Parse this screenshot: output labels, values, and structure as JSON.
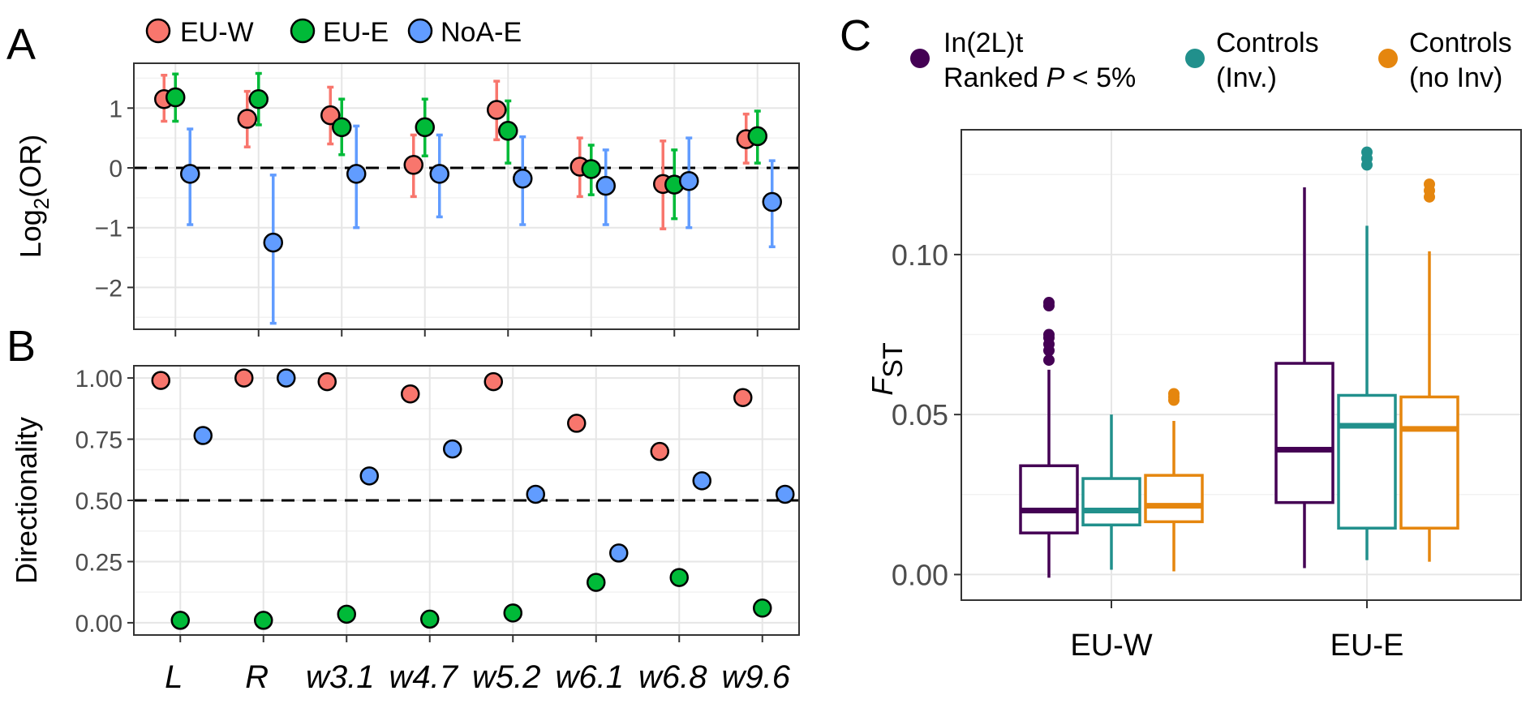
{
  "panel_labels": {
    "a": "A",
    "b": "B",
    "c": "C"
  },
  "colors": {
    "eu_w": "#F8766D",
    "eu_e": "#00BA38",
    "noa_e": "#619CFF",
    "inversion": "#440154",
    "controls_inv": "#21908C",
    "controls_noinv": "#E5860E"
  },
  "chart_data": [
    {
      "id": "A",
      "type": "scatter",
      "ylabel_main": "Log",
      "ylabel_sub": "2",
      "ylabel_tail": "(OR)",
      "ylim": [
        -2.7,
        1.75
      ],
      "y_ticks": [
        1,
        0,
        -1,
        -2
      ],
      "y_tick_labels": [
        "1",
        "0",
        "−1",
        "−2"
      ],
      "reference_line": 0,
      "categories": [
        "L",
        "R",
        "w3.1",
        "w4.7",
        "w5.2",
        "w6.1",
        "w6.8",
        "w9.6"
      ],
      "legend": [
        "EU-W",
        "EU-E",
        "NoA-E"
      ],
      "series": [
        {
          "name": "EU-W",
          "values": [
            1.15,
            0.82,
            0.88,
            0.05,
            0.97,
            0.02,
            -0.27,
            0.48
          ],
          "lower": [
            0.78,
            0.35,
            0.4,
            -0.48,
            0.47,
            -0.48,
            -1.02,
            0.08
          ],
          "upper": [
            1.55,
            1.28,
            1.35,
            0.55,
            1.45,
            0.5,
            0.45,
            0.9
          ]
        },
        {
          "name": "EU-E",
          "values": [
            1.18,
            1.15,
            0.68,
            0.68,
            0.62,
            -0.02,
            -0.28,
            0.53
          ],
          "lower": [
            0.78,
            0.72,
            0.22,
            0.2,
            0.08,
            -0.45,
            -0.85,
            0.08
          ],
          "upper": [
            1.57,
            1.58,
            1.15,
            1.15,
            1.12,
            0.38,
            0.3,
            0.95
          ]
        },
        {
          "name": "NoA-E",
          "values": [
            -0.1,
            -1.25,
            -0.1,
            -0.1,
            -0.18,
            -0.3,
            -0.22,
            -0.57
          ],
          "lower": [
            -0.95,
            -2.6,
            -1.0,
            -0.82,
            -0.95,
            -0.95,
            -1.0,
            -1.32
          ],
          "upper": [
            0.65,
            -0.12,
            0.7,
            0.55,
            0.52,
            0.3,
            0.5,
            0.12
          ]
        }
      ]
    },
    {
      "id": "B",
      "type": "scatter",
      "ylabel": "Directionality",
      "ylim": [
        -0.05,
        1.05
      ],
      "y_ticks": [
        0,
        0.25,
        0.5,
        0.75,
        1
      ],
      "y_tick_labels": [
        "0.00",
        "0.25",
        "0.50",
        "0.75",
        "1.00"
      ],
      "reference_line": 0.5,
      "categories": [
        "L",
        "R",
        "w3.1",
        "w4.7",
        "w5.2",
        "w6.1",
        "w6.8",
        "w9.6"
      ],
      "series": [
        {
          "name": "EU-W",
          "values": [
            0.99,
            1.0,
            0.985,
            0.935,
            0.985,
            0.815,
            0.7,
            0.92
          ]
        },
        {
          "name": "EU-E",
          "values": [
            0.01,
            0.01,
            0.035,
            0.015,
            0.04,
            0.165,
            0.185,
            0.06
          ]
        },
        {
          "name": "NoA-E",
          "values": [
            0.765,
            1.0,
            0.6,
            0.71,
            0.525,
            0.285,
            0.58,
            0.525
          ]
        }
      ]
    },
    {
      "id": "C",
      "type": "box",
      "ylabel_main": "F",
      "ylabel_sub": "ST",
      "ylim": [
        -0.008,
        0.139
      ],
      "y_ticks": [
        0,
        0.05,
        0.1
      ],
      "y_tick_labels": [
        "0.00",
        "0.05",
        "0.10"
      ],
      "categories": [
        "EU-W",
        "EU-E"
      ],
      "legend": [
        {
          "line1": "In(2L)t",
          "line2_pre": "Ranked ",
          "line2_p": "P",
          "line2_post": " < 5%"
        },
        {
          "line1": "Controls",
          "line2": "(Inv.)"
        },
        {
          "line1": "Controls",
          "line2": "(no Inv)"
        }
      ],
      "series": [
        {
          "name": "In(2L)t",
          "boxes": [
            {
              "whisker_low": -0.001,
              "q1": 0.013,
              "median": 0.02,
              "q3": 0.034,
              "whisker_high": 0.064,
              "outliers": [
                0.067,
                0.07,
                0.072,
                0.074,
                0.075,
                0.084,
                0.085
              ]
            },
            {
              "whisker_low": 0.002,
              "q1": 0.0225,
              "median": 0.039,
              "q3": 0.066,
              "whisker_high": 0.121,
              "outliers": []
            }
          ]
        },
        {
          "name": "Controls (Inv.)",
          "boxes": [
            {
              "whisker_low": 0.0015,
              "q1": 0.0155,
              "median": 0.02,
              "q3": 0.03,
              "whisker_high": 0.05,
              "outliers": []
            },
            {
              "whisker_low": 0.0045,
              "q1": 0.0145,
              "median": 0.0465,
              "q3": 0.056,
              "whisker_high": 0.109,
              "outliers": [
                0.128,
                0.13,
                0.132
              ]
            }
          ]
        },
        {
          "name": "Controls (no Inv)",
          "boxes": [
            {
              "whisker_low": 0.001,
              "q1": 0.0165,
              "median": 0.0215,
              "q3": 0.031,
              "whisker_high": 0.048,
              "outliers": [
                0.0545,
                0.0555,
                0.0565
              ]
            },
            {
              "whisker_low": 0.004,
              "q1": 0.0145,
              "median": 0.0455,
              "q3": 0.0555,
              "whisker_high": 0.101,
              "outliers": [
                0.118,
                0.12,
                0.122
              ]
            }
          ]
        }
      ]
    }
  ]
}
